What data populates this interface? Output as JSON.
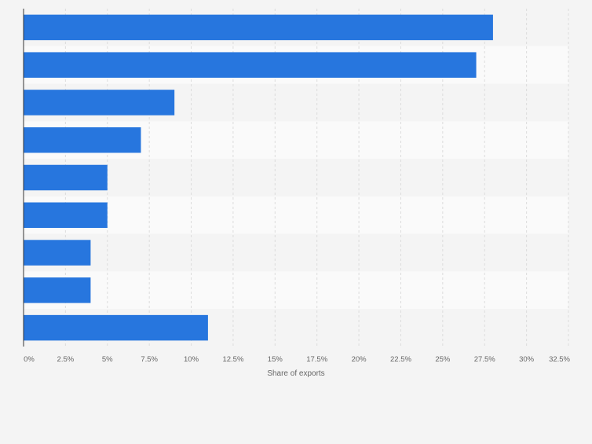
{
  "chart_data": {
    "type": "bar",
    "orientation": "horizontal",
    "title": "",
    "xlabel": "Share of exports",
    "ylabel": "",
    "xlim": [
      0,
      32.5
    ],
    "x_ticks": [
      0,
      2.5,
      5,
      7.5,
      10,
      12.5,
      15,
      17.5,
      20,
      22.5,
      25,
      27.5,
      30,
      32.5
    ],
    "x_tick_labels": [
      "0%",
      "2.5%",
      "5%",
      "7.5%",
      "10%",
      "12.5%",
      "15%",
      "17.5%",
      "20%",
      "22.5%",
      "25%",
      "27.5%",
      "30%",
      "32.5%"
    ],
    "categories": [
      "",
      "",
      "",
      "",
      "",
      "",
      "",
      "",
      ""
    ],
    "values": [
      28,
      27,
      9,
      7,
      5,
      5,
      4,
      4,
      11
    ],
    "unit": "%",
    "grid": true,
    "legend": "none",
    "colors": {
      "bar": "#2776de",
      "band_light": "#fafafa",
      "band_dark": "#f4f4f4",
      "grid": "#dcdcdc",
      "axis": "#333333",
      "tick_text": "#666666",
      "page_bg": "#f4f4f4"
    }
  }
}
